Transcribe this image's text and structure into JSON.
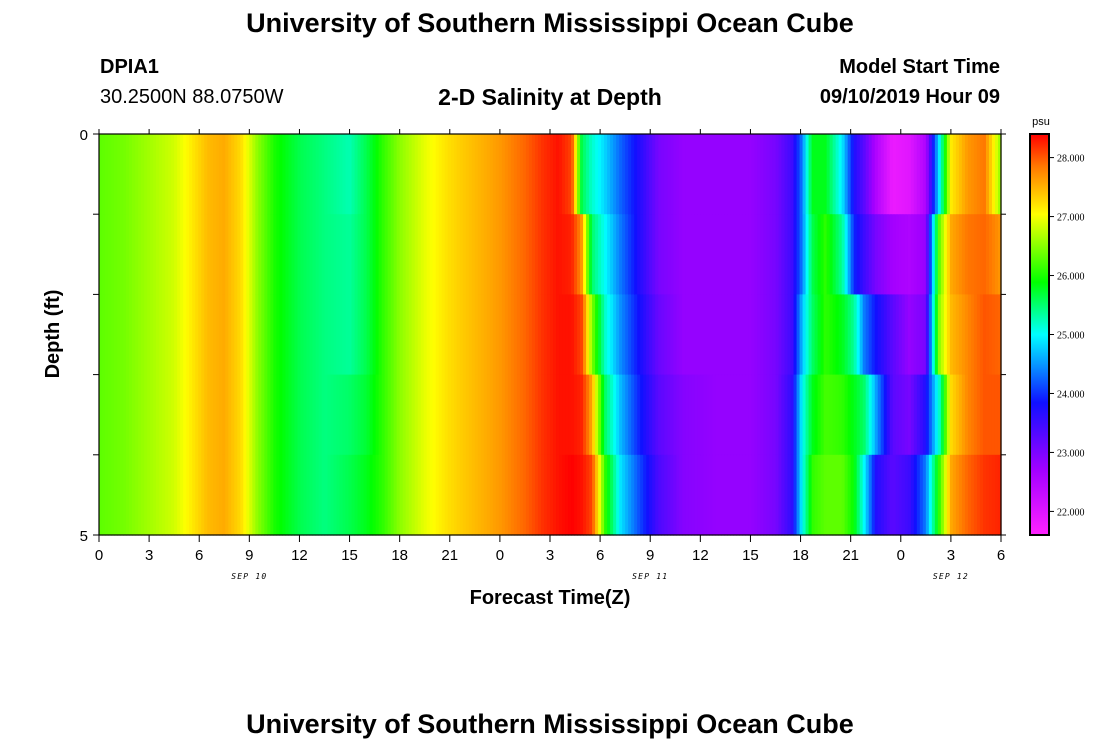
{
  "header": {
    "title": "University of Southern Mississippi Ocean Cube",
    "station_id": "DPIA1",
    "station_coords": "30.2500N 88.0750W",
    "subtitle": "2-D Salinity at Depth",
    "model_label": "Model Start Time",
    "model_start": "09/10/2019 Hour 09"
  },
  "footer": {
    "title": "University of Southern Mississippi Ocean Cube"
  },
  "chart_data": {
    "type": "heatmap",
    "title": "2-D Salinity at Depth",
    "xlabel": "Forecast Time(Z)",
    "ylabel": "Depth (ft)",
    "x_hours": [
      0,
      3,
      6,
      9,
      12,
      15,
      18,
      21,
      24,
      27,
      30,
      33,
      36,
      39,
      42,
      45,
      48,
      51,
      54
    ],
    "x_tick_labels": [
      "0",
      "3",
      "6",
      "9",
      "12",
      "15",
      "18",
      "21",
      "0",
      "3",
      "6",
      "9",
      "12",
      "15",
      "18",
      "21",
      "0",
      "3",
      "6"
    ],
    "date_labels": [
      {
        "hour": 9,
        "label": "SEP 10"
      },
      {
        "hour": 33,
        "label": "SEP 11"
      },
      {
        "hour": 51,
        "label": "SEP 12"
      }
    ],
    "y_range": [
      0,
      5
    ],
    "y_tick_labels": [
      "0",
      "5"
    ],
    "colorbar": {
      "unit": "psu",
      "range": [
        21.6,
        28.4
      ],
      "tick_values": [
        22,
        23,
        24,
        25,
        26,
        27,
        28
      ],
      "tick_labels": [
        "22.000",
        "23.000",
        "24.000",
        "25.000",
        "26.000",
        "27.000",
        "28.000"
      ]
    },
    "depth_levels": [
      0,
      1,
      2,
      3,
      4,
      5
    ],
    "salinity_profile": [
      {
        "hour": 0.0,
        "values": [
          26.0,
          26.0,
          26.0,
          26.0,
          26.0
        ]
      },
      {
        "hour": 1.5,
        "values": [
          26.1,
          26.1,
          26.1,
          26.1,
          26.1
        ]
      },
      {
        "hour": 3.0,
        "values": [
          26.3,
          26.3,
          26.3,
          26.3,
          26.3
        ]
      },
      {
        "hour": 4.5,
        "values": [
          26.5,
          26.5,
          26.5,
          26.5,
          26.5
        ]
      },
      {
        "hour": 5.5,
        "values": [
          26.8,
          26.8,
          26.8,
          26.8,
          26.8
        ]
      },
      {
        "hour": 6.5,
        "values": [
          27.1,
          27.1,
          27.1,
          27.1,
          27.1
        ]
      },
      {
        "hour": 7.5,
        "values": [
          27.2,
          27.2,
          27.2,
          27.2,
          27.2
        ]
      },
      {
        "hour": 8.5,
        "values": [
          26.9,
          26.9,
          26.9,
          26.9,
          26.9
        ]
      },
      {
        "hour": 9.5,
        "values": [
          26.2,
          26.2,
          26.2,
          26.2,
          26.2
        ]
      },
      {
        "hour": 10.5,
        "values": [
          25.7,
          25.7,
          25.7,
          25.7,
          25.7
        ]
      },
      {
        "hour": 12.0,
        "values": [
          25.3,
          25.3,
          25.3,
          25.3,
          25.3
        ]
      },
      {
        "hour": 13.5,
        "values": [
          25.1,
          25.1,
          25.1,
          25.1,
          25.1
        ]
      },
      {
        "hour": 15.0,
        "values": [
          24.9,
          25.0,
          25.0,
          25.2,
          25.3
        ]
      },
      {
        "hour": 16.0,
        "values": [
          25.3,
          25.3,
          25.3,
          25.4,
          25.5
        ]
      },
      {
        "hour": 17.0,
        "values": [
          25.8,
          25.8,
          25.8,
          25.8,
          25.8
        ]
      },
      {
        "hour": 18.0,
        "values": [
          26.2,
          26.2,
          26.2,
          26.2,
          26.2
        ]
      },
      {
        "hour": 19.5,
        "values": [
          26.6,
          26.6,
          26.6,
          26.6,
          26.6
        ]
      },
      {
        "hour": 21.0,
        "values": [
          26.9,
          26.9,
          26.9,
          26.9,
          26.9
        ]
      },
      {
        "hour": 22.5,
        "values": [
          27.1,
          27.1,
          27.1,
          27.1,
          27.1
        ]
      },
      {
        "hour": 24.0,
        "values": [
          27.3,
          27.3,
          27.3,
          27.3,
          27.3
        ]
      },
      {
        "hour": 25.5,
        "values": [
          27.6,
          27.6,
          27.6,
          27.6,
          27.6
        ]
      },
      {
        "hour": 26.5,
        "values": [
          27.9,
          27.9,
          27.9,
          27.9,
          27.9
        ]
      },
      {
        "hour": 27.5,
        "values": [
          28.1,
          28.1,
          28.1,
          28.1,
          28.1
        ]
      },
      {
        "hour": 28.3,
        "values": [
          27.8,
          28.0,
          28.1,
          28.1,
          28.2
        ]
      },
      {
        "hour": 28.9,
        "values": [
          25.3,
          27.3,
          27.8,
          28.0,
          28.1
        ]
      },
      {
        "hour": 29.5,
        "values": [
          24.8,
          25.2,
          26.2,
          27.2,
          27.8
        ]
      },
      {
        "hour": 30.3,
        "values": [
          24.4,
          24.6,
          24.8,
          25.2,
          25.8
        ]
      },
      {
        "hour": 31.2,
        "values": [
          23.9,
          24.0,
          24.1,
          24.3,
          24.5
        ]
      },
      {
        "hour": 32.3,
        "values": [
          23.4,
          23.4,
          23.5,
          23.6,
          23.8
        ]
      },
      {
        "hour": 33.5,
        "values": [
          22.8,
          22.8,
          22.9,
          23.0,
          23.1
        ]
      },
      {
        "hour": 35.0,
        "values": [
          22.6,
          22.6,
          22.6,
          22.7,
          22.7
        ]
      },
      {
        "hour": 37.0,
        "values": [
          22.6,
          22.6,
          22.6,
          22.6,
          22.6
        ]
      },
      {
        "hour": 39.0,
        "values": [
          22.6,
          22.6,
          22.6,
          22.6,
          22.6
        ]
      },
      {
        "hour": 40.5,
        "values": [
          22.8,
          22.8,
          22.8,
          22.8,
          22.8
        ]
      },
      {
        "hour": 41.5,
        "values": [
          23.2,
          23.2,
          23.2,
          23.3,
          23.3
        ]
      },
      {
        "hour": 42.1,
        "values": [
          24.0,
          24.0,
          24.3,
          24.6,
          24.6
        ]
      },
      {
        "hour": 42.7,
        "values": [
          25.5,
          25.3,
          25.2,
          25.5,
          25.8
        ]
      },
      {
        "hour": 43.5,
        "values": [
          25.5,
          25.8,
          25.8,
          25.9,
          26.0
        ]
      },
      {
        "hour": 44.5,
        "values": [
          24.5,
          25.0,
          25.5,
          25.8,
          26.0
        ]
      },
      {
        "hour": 45.2,
        "values": [
          23.4,
          23.6,
          25.0,
          25.5,
          25.6
        ]
      },
      {
        "hour": 45.8,
        "values": [
          23.0,
          23.2,
          24.0,
          25.2,
          24.6
        ]
      },
      {
        "hour": 46.5,
        "values": [
          22.4,
          22.8,
          23.5,
          24.2,
          23.4
        ]
      },
      {
        "hour": 47.5,
        "values": [
          21.8,
          22.5,
          23.0,
          23.0,
          23.0
        ]
      },
      {
        "hour": 48.5,
        "values": [
          21.9,
          22.4,
          22.6,
          22.8,
          23.2
        ]
      },
      {
        "hour": 49.5,
        "values": [
          22.4,
          22.6,
          22.8,
          23.4,
          24.0
        ]
      },
      {
        "hour": 50.3,
        "values": [
          24.5,
          26.0,
          26.2,
          24.8,
          25.8
        ]
      },
      {
        "hour": 51.0,
        "values": [
          26.8,
          27.2,
          27.1,
          26.9,
          27.2
        ]
      },
      {
        "hour": 52.0,
        "values": [
          27.3,
          27.5,
          27.4,
          27.4,
          27.6
        ]
      },
      {
        "hour": 53.0,
        "values": [
          27.5,
          27.6,
          27.7,
          27.7,
          27.9
        ]
      },
      {
        "hour": 54.0,
        "values": [
          26.2,
          27.3,
          27.6,
          27.7,
          28.0
        ]
      }
    ]
  }
}
